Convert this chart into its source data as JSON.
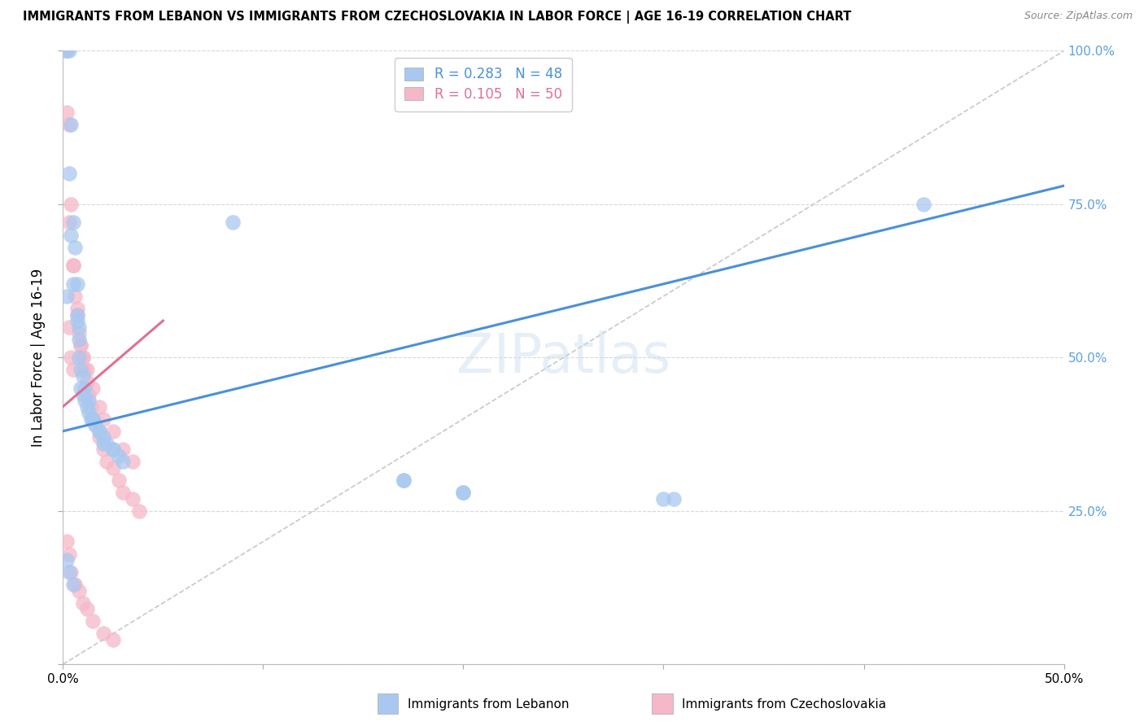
{
  "title": "IMMIGRANTS FROM LEBANON VS IMMIGRANTS FROM CZECHOSLOVAKIA IN LABOR FORCE | AGE 16-19 CORRELATION CHART",
  "source": "Source: ZipAtlas.com",
  "ylabel": "In Labor Force | Age 16-19",
  "legend_label_blue": "Immigrants from Lebanon",
  "legend_label_pink": "Immigrants from Czechoslovakia",
  "R_blue": 0.283,
  "N_blue": 48,
  "R_pink": 0.105,
  "N_pink": 50,
  "xlim": [
    0.0,
    0.5
  ],
  "ylim": [
    0.0,
    1.0
  ],
  "x_ticks": [
    0.0,
    0.1,
    0.2,
    0.3,
    0.4,
    0.5
  ],
  "y_ticks": [
    0.0,
    0.25,
    0.5,
    0.75,
    1.0
  ],
  "y_tick_labels": [
    "",
    "25.0%",
    "50.0%",
    "75.0%",
    "100.0%"
  ],
  "x_tick_labels": [
    "0.0%",
    "",
    "",
    "",
    "",
    "50.0%"
  ],
  "color_blue": "#A8C8F0",
  "color_pink": "#F5B8C8",
  "color_blue_line": "#4A90D9",
  "color_pink_line": "#E07090",
  "color_diag": "#C8C8C8",
  "color_grid": "#D8D8D8",
  "color_axis_right": "#5AA0E0",
  "blue_x": [
    0.002,
    0.003,
    0.004,
    0.005,
    0.006,
    0.007,
    0.007,
    0.008,
    0.008,
    0.009,
    0.009,
    0.01,
    0.011,
    0.012,
    0.013,
    0.014,
    0.015,
    0.016,
    0.018,
    0.02,
    0.022,
    0.025,
    0.028,
    0.003,
    0.004,
    0.005,
    0.007,
    0.008,
    0.01,
    0.011,
    0.013,
    0.015,
    0.018,
    0.02,
    0.025,
    0.03,
    0.17,
    0.2,
    0.3,
    0.305,
    0.002,
    0.003,
    0.005,
    0.085,
    0.17,
    0.2,
    0.43,
    0.002
  ],
  "blue_y": [
    1.0,
    1.0,
    0.88,
    0.72,
    0.68,
    0.62,
    0.57,
    0.55,
    0.5,
    0.48,
    0.45,
    0.44,
    0.43,
    0.42,
    0.41,
    0.4,
    0.4,
    0.39,
    0.38,
    0.37,
    0.36,
    0.35,
    0.34,
    0.8,
    0.7,
    0.62,
    0.56,
    0.53,
    0.47,
    0.45,
    0.43,
    0.4,
    0.38,
    0.36,
    0.35,
    0.33,
    0.3,
    0.28,
    0.27,
    0.27,
    0.17,
    0.15,
    0.13,
    0.72,
    0.3,
    0.28,
    0.75,
    0.6
  ],
  "pink_x": [
    0.001,
    0.002,
    0.003,
    0.004,
    0.005,
    0.006,
    0.007,
    0.008,
    0.009,
    0.01,
    0.011,
    0.012,
    0.013,
    0.014,
    0.015,
    0.016,
    0.018,
    0.02,
    0.022,
    0.025,
    0.028,
    0.03,
    0.035,
    0.038,
    0.002,
    0.003,
    0.005,
    0.007,
    0.009,
    0.01,
    0.012,
    0.015,
    0.018,
    0.02,
    0.025,
    0.03,
    0.035,
    0.002,
    0.003,
    0.004,
    0.006,
    0.008,
    0.01,
    0.012,
    0.015,
    0.02,
    0.025,
    0.003,
    0.004,
    0.005
  ],
  "pink_y": [
    1.0,
    1.0,
    0.88,
    0.75,
    0.65,
    0.6,
    0.57,
    0.54,
    0.52,
    0.5,
    0.48,
    0.46,
    0.44,
    0.42,
    0.4,
    0.39,
    0.37,
    0.35,
    0.33,
    0.32,
    0.3,
    0.28,
    0.27,
    0.25,
    0.9,
    0.72,
    0.65,
    0.58,
    0.52,
    0.5,
    0.48,
    0.45,
    0.42,
    0.4,
    0.38,
    0.35,
    0.33,
    0.2,
    0.18,
    0.15,
    0.13,
    0.12,
    0.1,
    0.09,
    0.07,
    0.05,
    0.04,
    0.55,
    0.5,
    0.48
  ],
  "blue_line_x": [
    0.0,
    0.5
  ],
  "blue_line_y": [
    0.38,
    0.78
  ],
  "pink_line_x": [
    0.0,
    0.05
  ],
  "pink_line_y": [
    0.42,
    0.56
  ],
  "diag_line_x": [
    0.0,
    0.5
  ],
  "diag_line_y": [
    0.0,
    1.0
  ]
}
